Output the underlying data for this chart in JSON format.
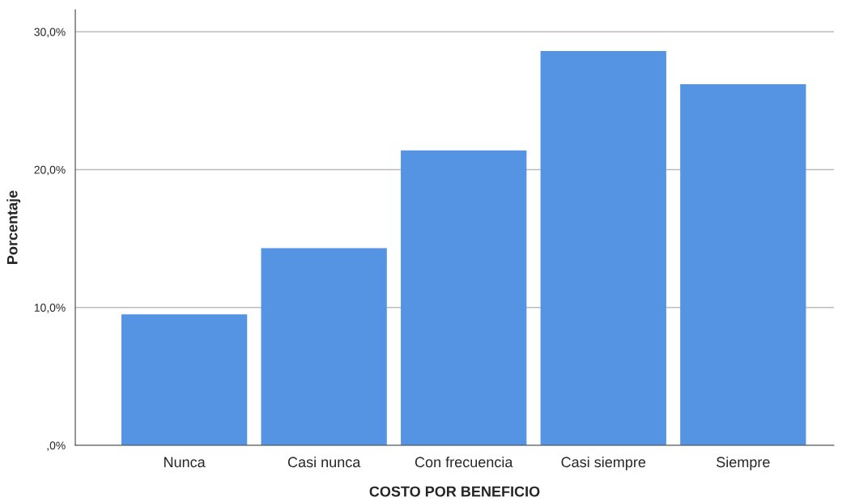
{
  "chart_data": {
    "type": "bar",
    "xlabel": "COSTO POR BENEFICIO",
    "ylabel": "Porcentaje",
    "categories": [
      "Nunca",
      "Casi nunca",
      "Con frecuencia",
      "Casi siempre",
      "Siempre"
    ],
    "values": [
      9.5,
      14.3,
      21.4,
      28.6,
      26.2
    ],
    "color": "#5594e3",
    "ylim": [
      0,
      31.6
    ],
    "yticks": [
      {
        "value": 0,
        "label": ",0%"
      },
      {
        "value": 10,
        "label": "10,0%"
      },
      {
        "value": 20,
        "label": "20,0%"
      },
      {
        "value": 30,
        "label": "30,0%"
      }
    ],
    "grid": "y",
    "legend": false
  }
}
